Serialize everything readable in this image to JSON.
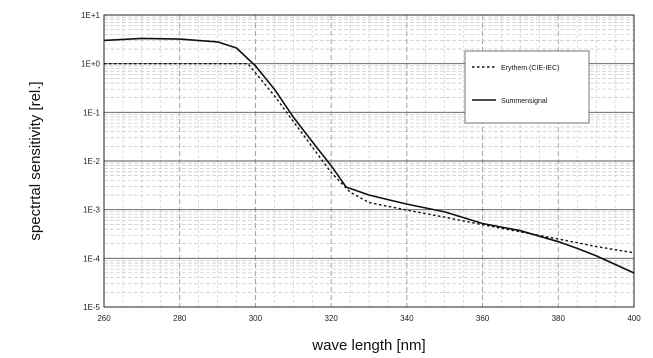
{
  "chart_data": {
    "type": "line",
    "xlabel": "wave length [nm]",
    "ylabel": "spectrtal sensitivity [rel.]",
    "x_scale": "linear",
    "y_scale": "log",
    "xlim": [
      260,
      400
    ],
    "ylim": [
      1e-05,
      10
    ],
    "x_ticks": [
      260,
      280,
      300,
      320,
      340,
      360,
      380,
      400
    ],
    "x_tick_labels": [
      "260",
      "280",
      "300",
      "320",
      "340",
      "360",
      "380",
      "400"
    ],
    "y_ticks": [
      10,
      1,
      0.1,
      0.01,
      0.001,
      0.0001,
      1e-05
    ],
    "y_tick_labels": [
      "1E+1",
      "1E+0",
      "1E-1",
      "1E-2",
      "1E-3",
      "1E-4",
      "1E-5"
    ],
    "grid": true,
    "legend_position": "top-right",
    "series": [
      {
        "name": "Erythem (CIE-IEC)",
        "line_style": "dotted",
        "color": "#111111",
        "x": [
          260,
          270,
          280,
          290,
          298,
          300,
          305,
          310,
          315,
          320,
          325,
          330,
          340,
          350,
          360,
          370,
          380,
          390,
          400
        ],
        "y": [
          1.0,
          1.0,
          1.0,
          1.0,
          1.0,
          0.65,
          0.22,
          0.065,
          0.0195,
          0.0058,
          0.0023,
          0.0014,
          0.00098,
          0.0007,
          0.00049,
          0.00035,
          0.00025,
          0.000175,
          0.00013
        ]
      },
      {
        "name": "Summensignal",
        "line_style": "solid",
        "color": "#111111",
        "x": [
          260,
          270,
          280,
          290,
          295,
          300,
          305,
          310,
          315,
          320,
          324,
          330,
          340,
          350,
          360,
          370,
          380,
          385,
          390,
          395,
          400
        ],
        "y": [
          3.0,
          3.3,
          3.2,
          2.8,
          2.1,
          0.9,
          0.3,
          0.08,
          0.025,
          0.008,
          0.0029,
          0.002,
          0.0013,
          0.0009,
          0.00052,
          0.00037,
          0.00022,
          0.00016,
          0.000113,
          7.5e-05,
          5e-05
        ]
      }
    ]
  }
}
